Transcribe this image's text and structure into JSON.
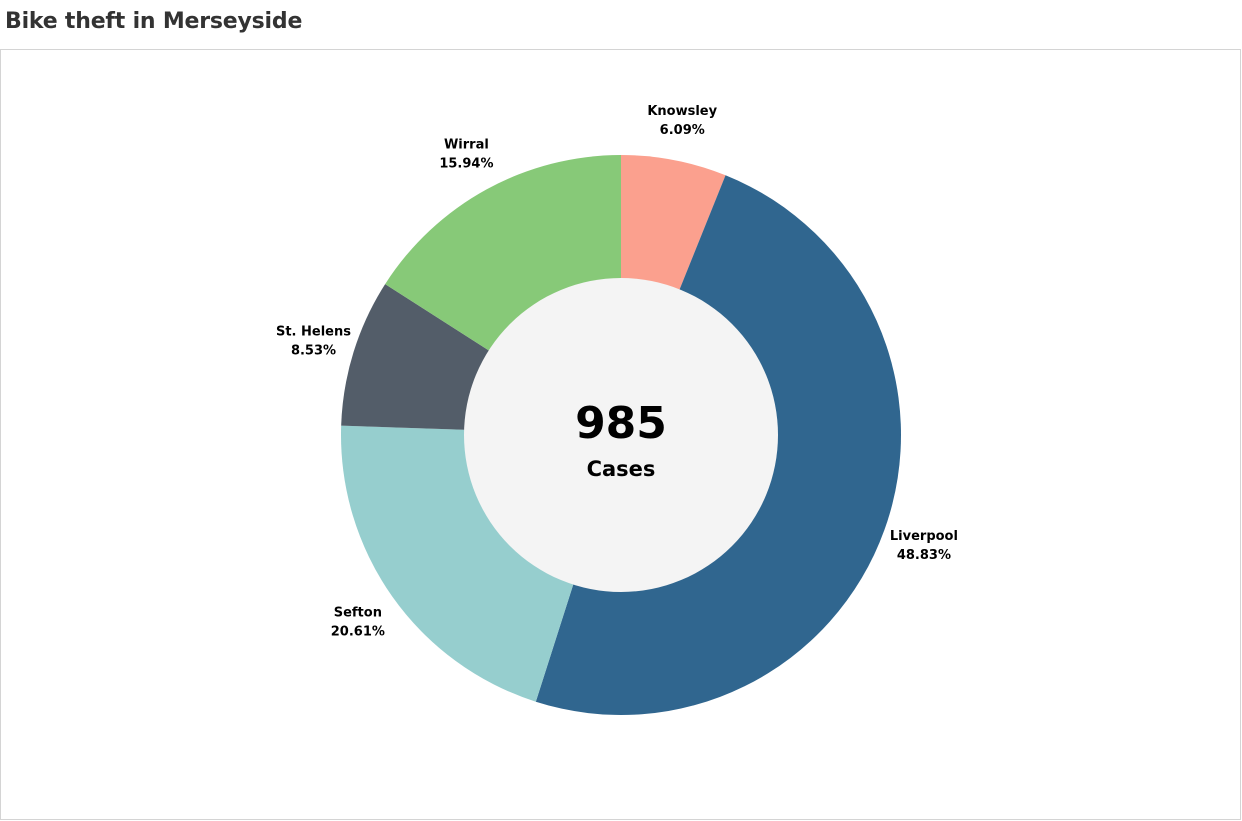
{
  "title": "Bike theft in Merseyside",
  "colors": {
    "background": "#ffffff",
    "hole": "#f4f4f4",
    "border": "#d4d4d4",
    "text": "#000000",
    "title_text": "#333333"
  },
  "chart_data": {
    "type": "pie",
    "variant": "donut",
    "center_value": "985",
    "center_label": "Cases",
    "slices": [
      {
        "name": "Knowsley",
        "percent_label": "6.09%",
        "value": 6.09,
        "color": "#fba08e"
      },
      {
        "name": "Liverpool",
        "percent_label": "48.83%",
        "value": 48.83,
        "color": "#30668f"
      },
      {
        "name": "Sefton",
        "percent_label": "20.61%",
        "value": 20.61,
        "color": "#96cece"
      },
      {
        "name": "St. Helens",
        "percent_label": "8.53%",
        "value": 8.53,
        "color": "#535d69"
      },
      {
        "name": "Wirral",
        "percent_label": "15.94%",
        "value": 15.94,
        "color": "#87c978"
      }
    ],
    "start": "top",
    "direction": "clockwise"
  }
}
